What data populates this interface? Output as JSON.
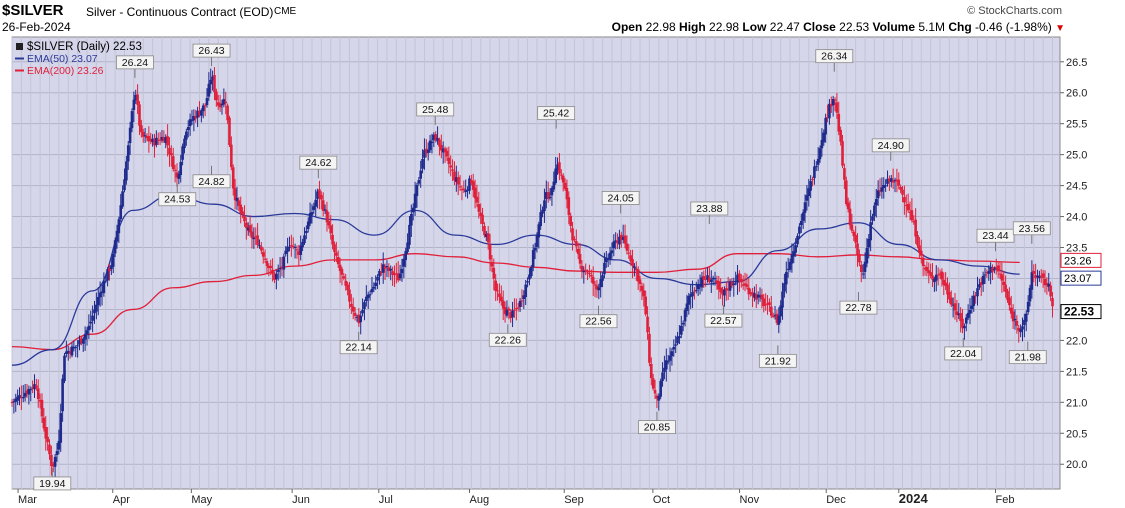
{
  "header": {
    "symbol": "$SILVER",
    "contract": "Silver - Continuous Contract (EOD)",
    "exchange": "CME",
    "date": "26-Feb-2024",
    "brand": "© StockCharts.com",
    "open_label": "Open",
    "open": "22.98",
    "high_label": "High",
    "high": "22.98",
    "low_label": "Low",
    "low": "22.47",
    "close_label": "Close",
    "close": "22.53",
    "volume_label": "Volume",
    "volume": "5.1M",
    "chg_label": "Chg",
    "chg": "-0.46 (-1.98%)",
    "chg_arrow": "▼"
  },
  "legend": [
    {
      "text": "$SILVER (Daily) 22.53",
      "color": "#000000"
    },
    {
      "text": "EMA(50) 23.07",
      "color": "#2a3a9a"
    },
    {
      "text": "EMA(200) 23.26",
      "color": "#e0203a"
    }
  ],
  "chart_data": {
    "type": "candlestick",
    "series": [
      {
        "name": "$SILVER (Daily)",
        "last": 22.53
      },
      {
        "name": "EMA(50)",
        "last": 23.07,
        "color": "#2a3a9a",
        "points": [
          [
            0,
            21.6
          ],
          [
            1,
            21.85
          ],
          [
            2,
            22.8
          ],
          [
            3,
            24.1
          ],
          [
            4,
            24.35
          ],
          [
            5,
            24.2
          ],
          [
            6,
            24.0
          ],
          [
            7,
            24.05
          ],
          [
            8,
            23.95
          ],
          [
            9,
            23.7
          ],
          [
            10,
            24.1
          ],
          [
            11,
            23.7
          ],
          [
            12,
            23.55
          ],
          [
            13,
            23.7
          ],
          [
            14,
            23.55
          ],
          [
            15,
            23.3
          ],
          [
            16,
            23.0
          ],
          [
            17,
            22.9
          ],
          [
            18,
            22.95
          ],
          [
            19,
            23.45
          ],
          [
            20,
            23.8
          ],
          [
            21,
            23.9
          ],
          [
            22,
            23.55
          ],
          [
            23,
            23.3
          ],
          [
            24,
            23.2
          ],
          [
            25,
            23.07
          ]
        ]
      },
      {
        "name": "EMA(200)",
        "last": 23.26,
        "color": "#e0203a",
        "points": [
          [
            0,
            21.9
          ],
          [
            1,
            21.85
          ],
          [
            2,
            22.1
          ],
          [
            3,
            22.5
          ],
          [
            4,
            22.85
          ],
          [
            5,
            22.95
          ],
          [
            6,
            23.05
          ],
          [
            7,
            23.2
          ],
          [
            8,
            23.3
          ],
          [
            9,
            23.3
          ],
          [
            10,
            23.4
          ],
          [
            11,
            23.35
          ],
          [
            12,
            23.25
          ],
          [
            13,
            23.18
          ],
          [
            14,
            23.12
          ],
          [
            15,
            23.1
          ],
          [
            16,
            23.1
          ],
          [
            17,
            23.15
          ],
          [
            18,
            23.4
          ],
          [
            19,
            23.4
          ],
          [
            20,
            23.35
          ],
          [
            21,
            23.38
          ],
          [
            22,
            23.35
          ],
          [
            23,
            23.3
          ],
          [
            24,
            23.28
          ],
          [
            25,
            23.26
          ]
        ]
      }
    ],
    "x_labels": [
      {
        "label": "Mar",
        "x": 0.15,
        "bold": false
      },
      {
        "label": "Apr",
        "x": 2.5,
        "bold": false
      },
      {
        "label": "May",
        "x": 4.45,
        "bold": false
      },
      {
        "label": "Jun",
        "x": 6.95,
        "bold": false
      },
      {
        "label": "Jul",
        "x": 9.1,
        "bold": false
      },
      {
        "label": "Aug",
        "x": 11.35,
        "bold": false
      },
      {
        "label": "Sep",
        "x": 13.7,
        "bold": false
      },
      {
        "label": "Oct",
        "x": 15.9,
        "bold": false
      },
      {
        "label": "Nov",
        "x": 18.05,
        "bold": false
      },
      {
        "label": "Dec",
        "x": 20.2,
        "bold": false
      },
      {
        "label": "2024",
        "x": 22.0,
        "bold": true
      },
      {
        "label": "Feb",
        "x": 24.4,
        "bold": false
      }
    ],
    "y_ticks": [
      20.0,
      20.5,
      21.0,
      21.5,
      22.0,
      22.5,
      23.0,
      23.5,
      24.0,
      24.5,
      25.0,
      25.5,
      26.0,
      26.5
    ],
    "ylim": [
      19.6,
      26.9
    ],
    "xlim": [
      0,
      26
    ],
    "right_tags": [
      {
        "value": 23.26,
        "label": "23.26",
        "style": "red"
      },
      {
        "value": 23.07,
        "label": "23.07",
        "style": "blue"
      },
      {
        "value": 22.53,
        "label": "22.53",
        "style": "bold"
      }
    ],
    "annotations": [
      {
        "label": "19.94",
        "x": 1.0,
        "y": 19.94,
        "pos": "below"
      },
      {
        "label": "26.24",
        "x": 3.05,
        "y": 26.24,
        "pos": "above"
      },
      {
        "label": "24.53",
        "x": 4.1,
        "y": 24.53,
        "pos": "below"
      },
      {
        "label": "26.43",
        "x": 4.95,
        "y": 26.43,
        "pos": "above"
      },
      {
        "label": "24.82",
        "x": 4.95,
        "y": 24.82,
        "pos": "below"
      },
      {
        "label": "24.62",
        "x": 7.6,
        "y": 24.62,
        "pos": "above"
      },
      {
        "label": "22.14",
        "x": 8.6,
        "y": 22.14,
        "pos": "below"
      },
      {
        "label": "25.48",
        "x": 10.5,
        "y": 25.48,
        "pos": "above"
      },
      {
        "label": "22.26",
        "x": 12.3,
        "y": 22.26,
        "pos": "below"
      },
      {
        "label": "25.42",
        "x": 13.5,
        "y": 25.42,
        "pos": "above"
      },
      {
        "label": "22.56",
        "x": 14.55,
        "y": 22.56,
        "pos": "below"
      },
      {
        "label": "24.05",
        "x": 15.1,
        "y": 24.05,
        "pos": "above"
      },
      {
        "label": "20.85",
        "x": 16.0,
        "y": 20.85,
        "pos": "below"
      },
      {
        "label": "23.88",
        "x": 17.3,
        "y": 23.88,
        "pos": "above"
      },
      {
        "label": "22.57",
        "x": 17.65,
        "y": 22.57,
        "pos": "below"
      },
      {
        "label": "21.92",
        "x": 19.0,
        "y": 21.92,
        "pos": "below"
      },
      {
        "label": "26.34",
        "x": 20.4,
        "y": 26.34,
        "pos": "above"
      },
      {
        "label": "22.78",
        "x": 21.0,
        "y": 22.78,
        "pos": "below"
      },
      {
        "label": "24.90",
        "x": 21.8,
        "y": 24.9,
        "pos": "above"
      },
      {
        "label": "23.44",
        "x": 24.4,
        "y": 23.44,
        "pos": "above"
      },
      {
        "label": "22.04",
        "x": 23.6,
        "y": 22.04,
        "pos": "below"
      },
      {
        "label": "23.56",
        "x": 25.3,
        "y": 23.56,
        "pos": "above"
      },
      {
        "label": "21.98",
        "x": 25.2,
        "y": 21.98,
        "pos": "below"
      }
    ],
    "path": [
      [
        0,
        21.0
      ],
      [
        0.3,
        21.15
      ],
      [
        0.6,
        21.3
      ],
      [
        0.85,
        20.4
      ],
      [
        1.0,
        19.94
      ],
      [
        1.15,
        20.3
      ],
      [
        1.3,
        21.8
      ],
      [
        1.6,
        21.9
      ],
      [
        1.9,
        22.2
      ],
      [
        2.2,
        22.8
      ],
      [
        2.5,
        23.3
      ],
      [
        2.7,
        24.2
      ],
      [
        2.9,
        25.2
      ],
      [
        3.05,
        26.1
      ],
      [
        3.2,
        25.3
      ],
      [
        3.5,
        25.2
      ],
      [
        3.8,
        25.3
      ],
      [
        4.1,
        24.6
      ],
      [
        4.3,
        25.4
      ],
      [
        4.5,
        25.6
      ],
      [
        4.8,
        25.8
      ],
      [
        4.95,
        26.3
      ],
      [
        5.1,
        25.8
      ],
      [
        5.3,
        25.9
      ],
      [
        5.5,
        24.4
      ],
      [
        5.7,
        24.0
      ],
      [
        5.9,
        23.7
      ],
      [
        6.1,
        23.6
      ],
      [
        6.3,
        23.3
      ],
      [
        6.5,
        23.0
      ],
      [
        6.7,
        23.2
      ],
      [
        6.9,
        23.6
      ],
      [
        7.1,
        23.4
      ],
      [
        7.3,
        23.8
      ],
      [
        7.6,
        24.4
      ],
      [
        7.8,
        24.0
      ],
      [
        8.0,
        23.4
      ],
      [
        8.2,
        23.0
      ],
      [
        8.4,
        22.6
      ],
      [
        8.6,
        22.3
      ],
      [
        8.8,
        22.7
      ],
      [
        9.0,
        22.9
      ],
      [
        9.2,
        23.2
      ],
      [
        9.4,
        23.1
      ],
      [
        9.6,
        23.0
      ],
      [
        9.8,
        23.6
      ],
      [
        10.0,
        24.3
      ],
      [
        10.2,
        25.0
      ],
      [
        10.5,
        25.3
      ],
      [
        10.8,
        24.9
      ],
      [
        11.0,
        24.6
      ],
      [
        11.2,
        24.4
      ],
      [
        11.4,
        24.6
      ],
      [
        11.6,
        24.0
      ],
      [
        11.8,
        23.6
      ],
      [
        12.0,
        22.8
      ],
      [
        12.2,
        22.5
      ],
      [
        12.4,
        22.4
      ],
      [
        12.6,
        22.6
      ],
      [
        12.8,
        23.0
      ],
      [
        13.0,
        23.6
      ],
      [
        13.2,
        24.3
      ],
      [
        13.4,
        24.4
      ],
      [
        13.5,
        24.9
      ],
      [
        13.7,
        24.5
      ],
      [
        13.9,
        23.7
      ],
      [
        14.1,
        23.2
      ],
      [
        14.3,
        23.1
      ],
      [
        14.5,
        22.8
      ],
      [
        14.7,
        23.2
      ],
      [
        14.9,
        23.5
      ],
      [
        15.1,
        23.7
      ],
      [
        15.3,
        23.4
      ],
      [
        15.5,
        23.1
      ],
      [
        15.7,
        22.6
      ],
      [
        15.85,
        21.4
      ],
      [
        16.0,
        21.0
      ],
      [
        16.2,
        21.6
      ],
      [
        16.4,
        21.8
      ],
      [
        16.6,
        22.2
      ],
      [
        16.8,
        22.7
      ],
      [
        17.0,
        22.9
      ],
      [
        17.2,
        23.0
      ],
      [
        17.4,
        23.0
      ],
      [
        17.6,
        22.7
      ],
      [
        17.8,
        22.9
      ],
      [
        18.0,
        23.0
      ],
      [
        18.3,
        22.8
      ],
      [
        18.5,
        22.7
      ],
      [
        18.8,
        22.5
      ],
      [
        19.0,
        22.3
      ],
      [
        19.2,
        23.1
      ],
      [
        19.4,
        23.5
      ],
      [
        19.6,
        24.0
      ],
      [
        19.8,
        24.5
      ],
      [
        20.0,
        25.0
      ],
      [
        20.2,
        25.6
      ],
      [
        20.4,
        26.0
      ],
      [
        20.55,
        25.2
      ],
      [
        20.7,
        24.2
      ],
      [
        20.9,
        23.6
      ],
      [
        21.1,
        23.0
      ],
      [
        21.3,
        23.9
      ],
      [
        21.5,
        24.4
      ],
      [
        21.8,
        24.6
      ],
      [
        22.0,
        24.5
      ],
      [
        22.2,
        24.2
      ],
      [
        22.4,
        23.8
      ],
      [
        22.6,
        23.2
      ],
      [
        22.8,
        23.0
      ],
      [
        23.0,
        23.1
      ],
      [
        23.2,
        22.8
      ],
      [
        23.4,
        22.5
      ],
      [
        23.6,
        22.2
      ],
      [
        23.8,
        22.6
      ],
      [
        24.0,
        22.9
      ],
      [
        24.2,
        23.1
      ],
      [
        24.4,
        23.2
      ],
      [
        24.6,
        22.9
      ],
      [
        24.8,
        22.4
      ],
      [
        25.0,
        22.2
      ],
      [
        25.15,
        22.3
      ],
      [
        25.3,
        23.1
      ],
      [
        25.5,
        23.0
      ],
      [
        25.7,
        22.9
      ],
      [
        25.85,
        22.53
      ]
    ]
  }
}
